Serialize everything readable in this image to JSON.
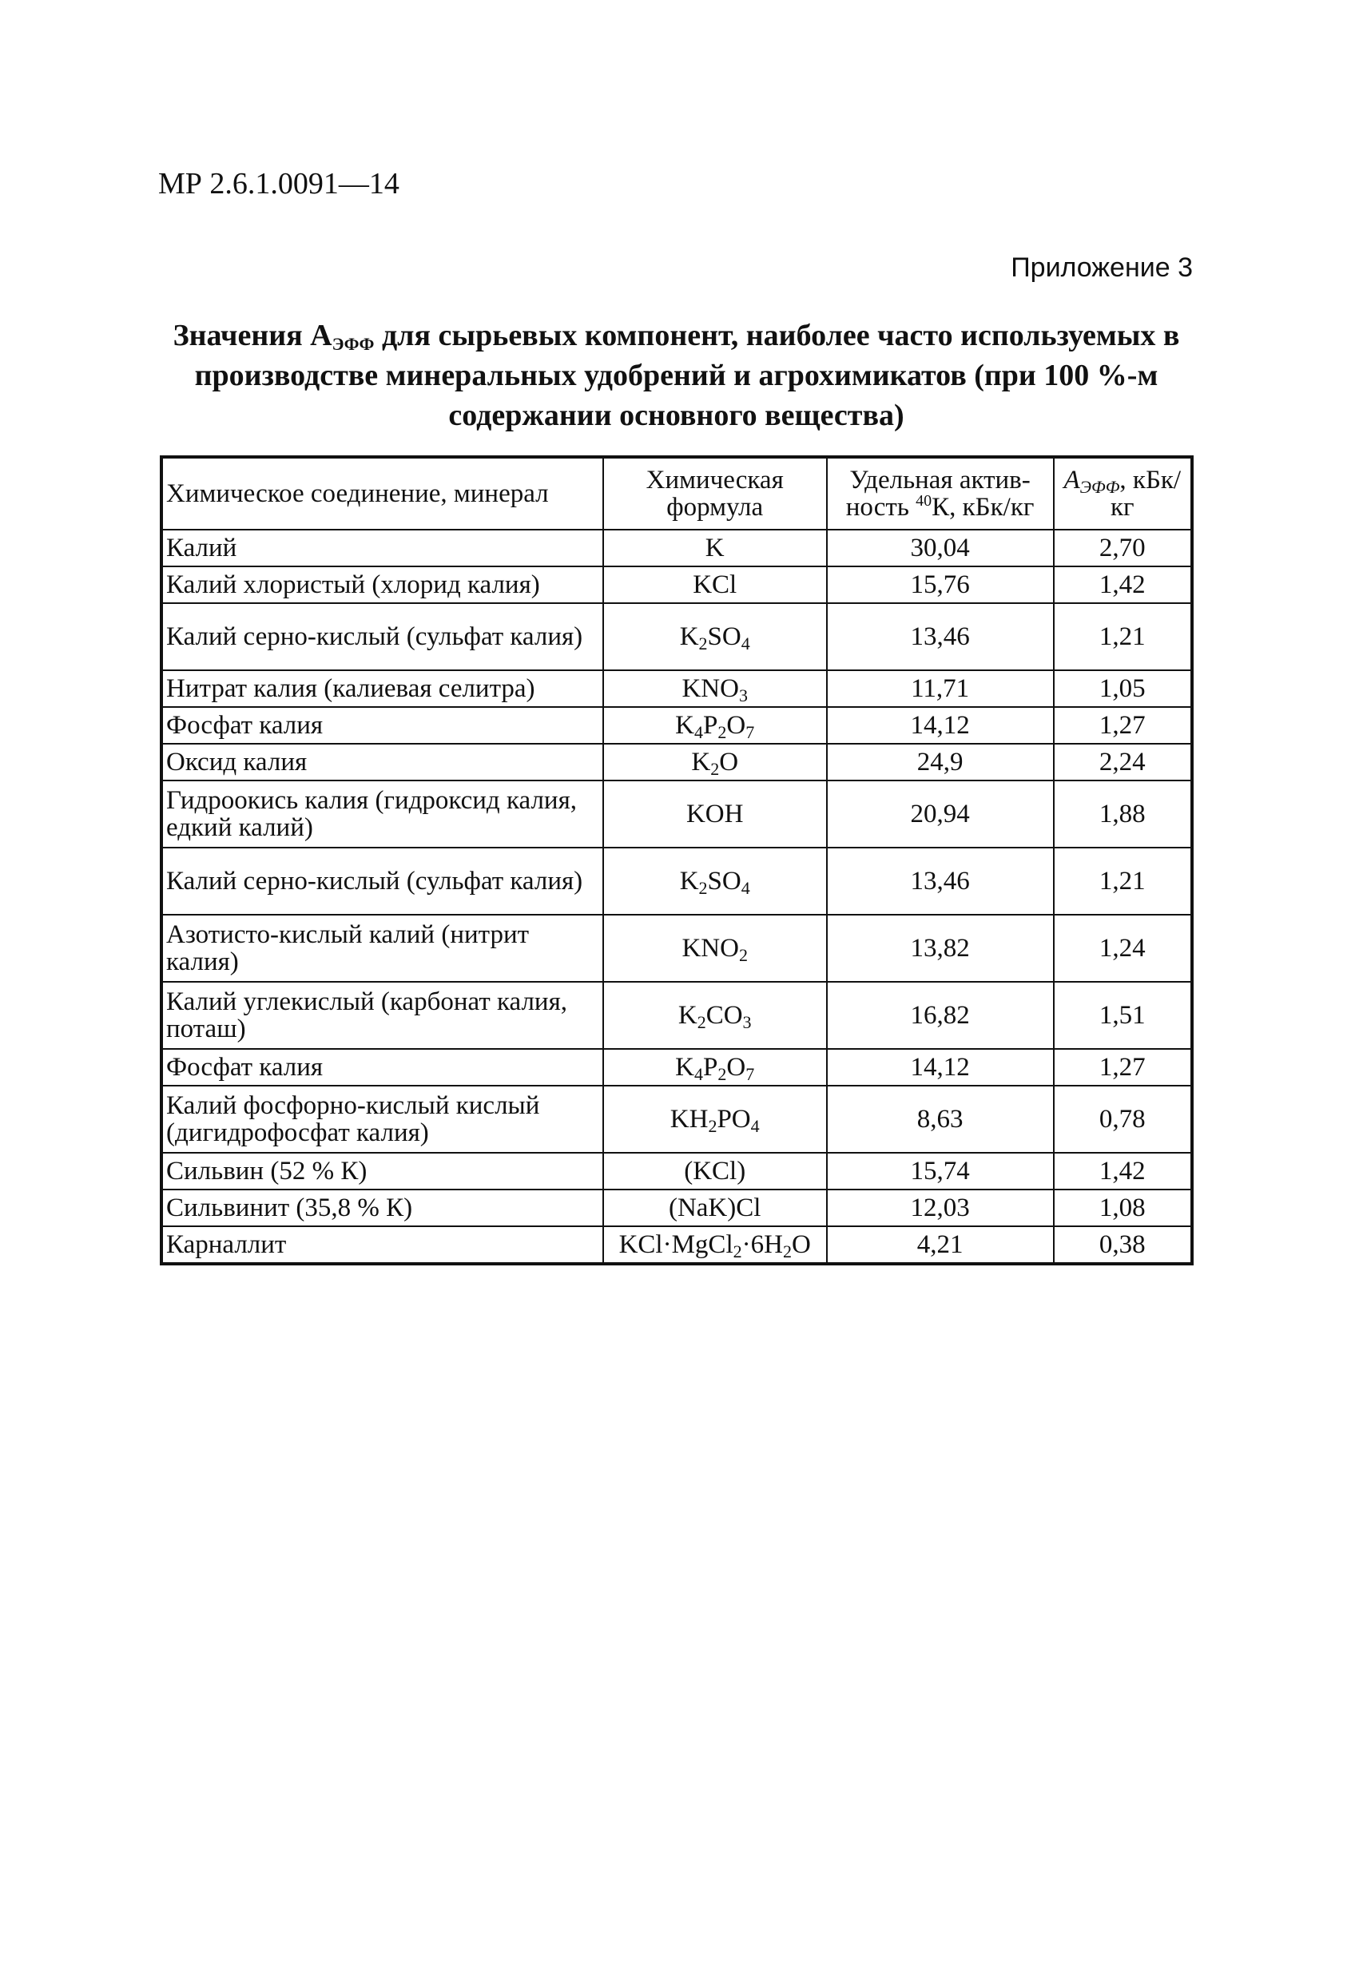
{
  "document": {
    "number": "МР 2.6.1.0091—14",
    "appendix": "Приложение 3",
    "title_parts": [
      "Значения А",
      "ЭФФ",
      " для сырьевых компонент, наиболее часто используемых в производстве минеральных удобрений и агрохимикатов (при 100 %-м содержании основного вещества)"
    ]
  },
  "table": {
    "headers": {
      "compound": "Химическое соединение, минерал",
      "formula": "Химическая формула",
      "activity_pre": "Удельная актив-ность ",
      "activity_sup": "40",
      "activity_post": "К, кБк/кг",
      "aeff_a": "А",
      "aeff_sub": "ЭФФ",
      "aeff_unit": ", кБк/кг"
    },
    "rows": [
      {
        "name": "Калий",
        "formula": "K",
        "activity": "30,04",
        "aeff": "2,70"
      },
      {
        "name": "Калий хлористый (хлорид калия)",
        "formula": "KCl",
        "activity": "15,76",
        "aeff": "1,42"
      },
      {
        "name": "Калий серно-кислый (сульфат калия)",
        "formula": "K<sub>2</sub>SO<sub>4</sub>",
        "activity": "13,46",
        "aeff": "1,21"
      },
      {
        "name": "Нитрат калия (калиевая селитра)",
        "formula": "KNO<sub>3</sub>",
        "activity": "11,71",
        "aeff": "1,05"
      },
      {
        "name": "Фосфат калия",
        "formula": "K<sub>4</sub>P<sub>2</sub>O<sub>7</sub>",
        "activity": "14,12",
        "aeff": "1,27"
      },
      {
        "name": "Оксид калия",
        "formula": "K<sub>2</sub>O",
        "activity": "24,9",
        "aeff": "2,24"
      },
      {
        "name": "Гидроокись калия (гидроксид калия, едкий калий)",
        "formula": "KOH",
        "activity": "20,94",
        "aeff": "1,88"
      },
      {
        "name": "Калий серно-кислый (сульфат калия)",
        "formula": "K<sub>2</sub>SO<sub>4</sub>",
        "activity": "13,46",
        "aeff": "1,21"
      },
      {
        "name": "Азотисто-кислый калий (нитрит калия)",
        "formula": "KNO<sub>2</sub>",
        "activity": "13,82",
        "aeff": "1,24"
      },
      {
        "name": "Калий углекислый (карбонат калия, поташ)",
        "formula": "K<sub>2</sub>CO<sub>3</sub>",
        "activity": "16,82",
        "aeff": "1,51"
      },
      {
        "name": "Фосфат калия",
        "formula": "K<sub>4</sub>P<sub>2</sub>O<sub>7</sub>",
        "activity": "14,12",
        "aeff": "1,27"
      },
      {
        "name": "Калий фосфорно-кислый кислый (дигидрофосфат калия)",
        "formula": "KH<sub>2</sub>PO<sub>4</sub>",
        "activity": "8,63",
        "aeff": "0,78"
      },
      {
        "name": "Сильвин (52 % К)",
        "formula": "(KCl)",
        "activity": "15,74",
        "aeff": "1,42"
      },
      {
        "name": "Сильвинит (35,8 % К)",
        "formula": "(NaK)Cl",
        "activity": "12,03",
        "aeff": "1,08"
      },
      {
        "name": "Карналлит",
        "formula": "KCl·MgCl<sub>2</sub>·6H<sub>2</sub>O",
        "activity": "4,21",
        "aeff": "0,38"
      }
    ]
  }
}
